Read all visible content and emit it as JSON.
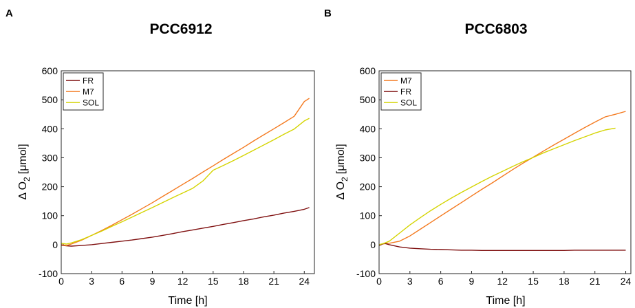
{
  "chart_data": [
    {
      "type": "line",
      "panel_label": "A",
      "title": "PCC6912",
      "xlabel": "Time [h]",
      "ylabel_main": "Δ O",
      "ylabel_sub": "2",
      "ylabel_unit": "[μmol]",
      "xlim": [
        0,
        25
      ],
      "ylim": [
        -100,
        600
      ],
      "xticks": [
        0,
        3,
        6,
        9,
        12,
        15,
        18,
        21,
        24
      ],
      "yticks": [
        -100,
        0,
        100,
        200,
        300,
        400,
        500,
        600
      ],
      "legend_position": "top-left",
      "series": [
        {
          "name": "FR",
          "color": "#7f0f0f",
          "x": [
            0,
            0.5,
            1,
            2,
            3,
            4,
            5,
            6,
            7,
            8,
            9,
            10,
            11,
            12,
            13,
            14,
            15,
            16,
            17,
            18,
            19,
            20,
            21,
            22,
            23,
            24,
            24.5
          ],
          "y": [
            -2,
            -4,
            -5,
            -3,
            0,
            4,
            8,
            12,
            16,
            21,
            26,
            32,
            38,
            45,
            51,
            57,
            63,
            70,
            76,
            83,
            89,
            96,
            102,
            109,
            115,
            122,
            128
          ]
        },
        {
          "name": "M7",
          "color": "#f47a20",
          "x": [
            0,
            0.5,
            1,
            2,
            3,
            4,
            5,
            6,
            7,
            8,
            9,
            10,
            11,
            12,
            13,
            14,
            15,
            16,
            17,
            18,
            19,
            20,
            21,
            22,
            23,
            24,
            24.5
          ],
          "y": [
            0,
            -3,
            2,
            15,
            32,
            49,
            67,
            86,
            105,
            125,
            145,
            166,
            187,
            208,
            229,
            251,
            272,
            294,
            315,
            336,
            358,
            379,
            400,
            421,
            443,
            494,
            505
          ]
        },
        {
          "name": "SOL",
          "color": "#d4d400",
          "x": [
            0,
            0.5,
            1,
            2,
            3,
            4,
            5,
            6,
            7,
            8,
            9,
            10,
            11,
            12,
            13,
            14,
            15,
            16,
            17,
            18,
            19,
            20,
            21,
            22,
            23,
            24,
            24.5
          ],
          "y": [
            5,
            2,
            6,
            17,
            32,
            47,
            63,
            79,
            95,
            112,
            128,
            145,
            162,
            178,
            195,
            220,
            257,
            273,
            290,
            308,
            326,
            344,
            362,
            381,
            399,
            427,
            436
          ]
        }
      ]
    },
    {
      "type": "line",
      "panel_label": "B",
      "title": "PCC6803",
      "xlabel": "Time [h]",
      "ylabel_main": "Δ O",
      "ylabel_sub": "2",
      "ylabel_unit": "[μmol]",
      "xlim": [
        0,
        24.5
      ],
      "ylim": [
        -100,
        600
      ],
      "xticks": [
        0,
        3,
        6,
        9,
        12,
        15,
        18,
        21,
        24
      ],
      "yticks": [
        -100,
        0,
        100,
        200,
        300,
        400,
        500,
        600
      ],
      "legend_position": "top-left",
      "series": [
        {
          "name": "M7",
          "color": "#f47a20",
          "x": [
            0,
            0.5,
            1,
            2,
            3,
            4,
            5,
            6,
            7,
            8,
            9,
            10,
            11,
            12,
            13,
            14,
            15,
            16,
            17,
            18,
            19,
            20,
            21,
            22,
            23,
            24
          ],
          "y": [
            0,
            3,
            5,
            12,
            30,
            53,
            76,
            99,
            122,
            145,
            168,
            191,
            213,
            236,
            259,
            281,
            302,
            323,
            344,
            364,
            384,
            404,
            423,
            441,
            450,
            460
          ]
        },
        {
          "name": "FR",
          "color": "#7f0f0f",
          "x": [
            0,
            0.5,
            1,
            2,
            3,
            4,
            5,
            6,
            7,
            8,
            9,
            10,
            11,
            12,
            13,
            14,
            15,
            16,
            17,
            18,
            19,
            20,
            21,
            22,
            23,
            24
          ],
          "y": [
            -3,
            5,
            0,
            -8,
            -12,
            -14,
            -16,
            -17,
            -18,
            -19,
            -19,
            -20,
            -20,
            -20,
            -20,
            -20,
            -20,
            -20,
            -20,
            -20,
            -19,
            -19,
            -19,
            -19,
            -19,
            -19
          ]
        },
        {
          "name": "SOL",
          "color": "#d4d400",
          "x": [
            0,
            0.5,
            1,
            2,
            3,
            4,
            5,
            6,
            7,
            8,
            9,
            10,
            11,
            12,
            13,
            14,
            15,
            16,
            17,
            18,
            19,
            20,
            21,
            22,
            23
          ],
          "y": [
            0,
            5,
            12,
            40,
            68,
            93,
            117,
            139,
            160,
            180,
            199,
            218,
            236,
            253,
            270,
            286,
            301,
            317,
            331,
            345,
            359,
            372,
            385,
            396,
            402
          ]
        }
      ]
    }
  ]
}
